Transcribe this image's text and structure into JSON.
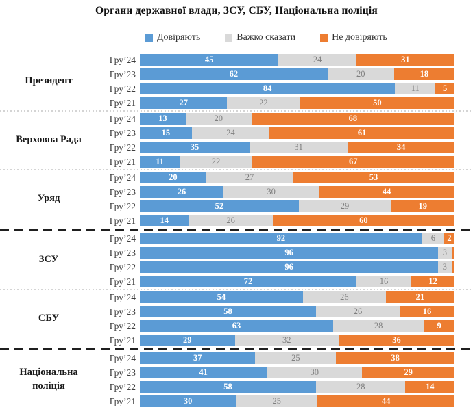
{
  "title": "Органи державної влади, ЗСУ, СБУ, Національна поліція",
  "legend": [
    {
      "name": "trust",
      "label": "Довіряють",
      "color": "#5B9BD5"
    },
    {
      "name": "hard-to-say",
      "label": "Важко сказати",
      "color": "#D9D9D9"
    },
    {
      "name": "distrust",
      "label": "Не  довіряють",
      "color": "#ED7D31"
    }
  ],
  "chart_data": {
    "type": "bar",
    "orientation": "horizontal",
    "stacked": true,
    "unit": "percent",
    "title": "Органи державної влади, ЗСУ, СБУ, Національна поліція",
    "series_names": [
      "Довіряють",
      "Важко сказати",
      "Не довіряють"
    ],
    "colors": [
      "#5B9BD5",
      "#D9D9D9",
      "#ED7D31"
    ],
    "xlim": [
      0,
      100
    ],
    "grid": false,
    "legend_position": "top",
    "groups": [
      {
        "name": "Президент",
        "separator_after": "dotted",
        "rows": [
          {
            "period": "Гру’24",
            "values": [
              45,
              24,
              31
            ],
            "labels": [
              "45",
              "24",
              "31"
            ]
          },
          {
            "period": "Гру’23",
            "values": [
              62,
              20,
              18
            ],
            "labels": [
              "62",
              "20",
              "18"
            ]
          },
          {
            "period": "Гру’22",
            "values": [
              84,
              11,
              5
            ],
            "labels": [
              "84",
              "11",
              "5"
            ]
          },
          {
            "period": "Гру’21",
            "values": [
              27,
              22,
              50
            ],
            "labels": [
              "27",
              "22",
              "50"
            ]
          }
        ]
      },
      {
        "name": "Верховна Рада",
        "separator_after": "dotted",
        "rows": [
          {
            "period": "Гру’24",
            "values": [
              13,
              20,
              68
            ],
            "labels": [
              "13",
              "20",
              "68"
            ]
          },
          {
            "period": "Гру’23",
            "values": [
              15,
              24,
              61
            ],
            "labels": [
              "15",
              "24",
              "61"
            ]
          },
          {
            "period": "Гру’22",
            "values": [
              35,
              31,
              34
            ],
            "labels": [
              "35",
              "31",
              "34"
            ]
          },
          {
            "period": "Гру’21",
            "values": [
              11,
              22,
              67
            ],
            "labels": [
              "11",
              "22",
              "67"
            ]
          }
        ]
      },
      {
        "name": "Уряд",
        "separator_after": "dashed-bold",
        "rows": [
          {
            "period": "Гру’24",
            "values": [
              20,
              27,
              53
            ],
            "labels": [
              "20",
              "27",
              "53"
            ]
          },
          {
            "period": "Гру’23",
            "values": [
              26,
              30,
              44
            ],
            "labels": [
              "26",
              "30",
              "44"
            ]
          },
          {
            "period": "Гру’22",
            "values": [
              52,
              29,
              19
            ],
            "labels": [
              "52",
              "29",
              "19"
            ]
          },
          {
            "period": "Гру’21",
            "values": [
              14,
              26,
              60
            ],
            "labels": [
              "14",
              "26",
              "60"
            ]
          }
        ]
      },
      {
        "name": "ЗСУ",
        "separator_after": "dotted",
        "rows": [
          {
            "period": "Гру’24",
            "values": [
              92,
              6,
              2
            ],
            "labels": [
              "92",
              "6",
              "2"
            ]
          },
          {
            "period": "Гру’23",
            "values": [
              96,
              3,
              1
            ],
            "labels": [
              "96",
              "3",
              ""
            ]
          },
          {
            "period": "Гру’22",
            "values": [
              96,
              3,
              1
            ],
            "labels": [
              "96",
              "3",
              ""
            ]
          },
          {
            "period": "Гру’21",
            "values": [
              72,
              16,
              12
            ],
            "labels": [
              "72",
              "16",
              "12"
            ]
          }
        ]
      },
      {
        "name": "СБУ",
        "separator_after": "dashed-bold",
        "rows": [
          {
            "period": "Гру’24",
            "values": [
              54,
              26,
              21
            ],
            "labels": [
              "54",
              "26",
              "21"
            ]
          },
          {
            "period": "Гру’23",
            "values": [
              58,
              26,
              16
            ],
            "labels": [
              "58",
              "26",
              "16"
            ]
          },
          {
            "period": "Гру’22",
            "values": [
              63,
              28,
              9
            ],
            "labels": [
              "63",
              "28",
              "9"
            ]
          },
          {
            "period": "Гру’21",
            "values": [
              29,
              32,
              36
            ],
            "labels": [
              "29",
              "32",
              "36"
            ]
          }
        ]
      },
      {
        "name": "Національна поліція",
        "separator_after": "none",
        "rows": [
          {
            "period": "Гру’24",
            "values": [
              37,
              25,
              38
            ],
            "labels": [
              "37",
              "25",
              "38"
            ]
          },
          {
            "period": "Гру’23",
            "values": [
              41,
              30,
              29
            ],
            "labels": [
              "41",
              "30",
              "29"
            ]
          },
          {
            "period": "Гру’22",
            "values": [
              58,
              28,
              14
            ],
            "labels": [
              "58",
              "28",
              "14"
            ]
          },
          {
            "period": "Гру’21",
            "values": [
              30,
              25,
              44
            ],
            "labels": [
              "30",
              "25",
              "44"
            ]
          }
        ]
      }
    ]
  }
}
